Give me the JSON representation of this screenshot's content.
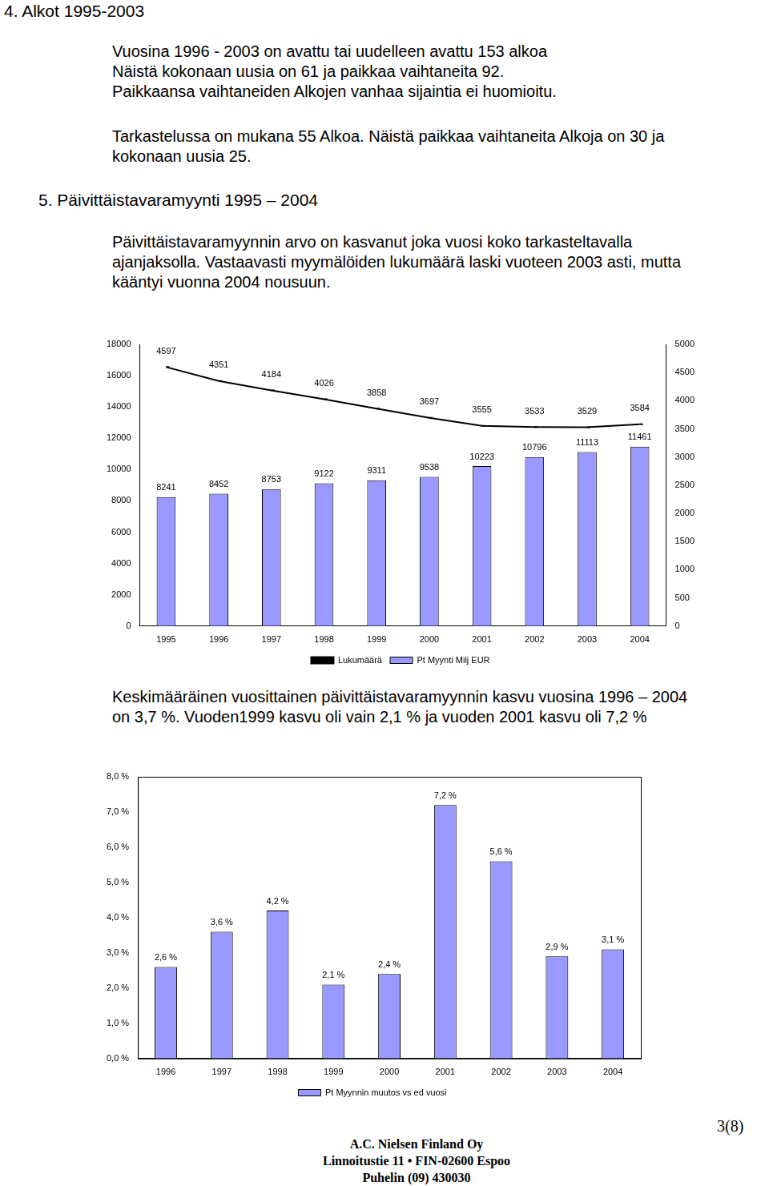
{
  "header": {
    "title": "4. Alkot 1995-2003"
  },
  "section4": {
    "paragraph1": [
      "Vuosina 1996 - 2003 on avattu tai uudelleen avattu 153 alkoa",
      "Näistä kokonaan uusia on 61 ja paikkaa vaihtaneita 92.",
      "Paikkaansa vaihtaneiden Alkojen vanhaa sijaintia ei huomioitu."
    ],
    "paragraph2": [
      "Tarkastelussa on mukana 55 Alkoa. Näistä paikkaa vaihtaneita Alkoja on 30 ja",
      "kokonaan uusia 25."
    ]
  },
  "section5": {
    "title": "5. Päivittäistavaramyynti 1995 – 2004",
    "paragraph1": [
      "Päivittäistavaramyynnin arvo on kasvanut joka vuosi koko tarkasteltavalla",
      "ajanjaksolla. Vastaavasti myymälöiden lukumäärä laski vuoteen 2003 asti, mutta",
      "kääntyi vuonna 2004 nousuun."
    ],
    "paragraph2": [
      "Keskimääräinen vuosittainen päivittäistavaramyynnin kasvu vuosina 1996 – 2004",
      "on 3,7 %. Vuoden1999 kasvu oli vain 2,1 % ja vuoden 2001 kasvu oli 7,2 %"
    ]
  },
  "chart_data": [
    {
      "type": "bar",
      "categories": [
        "1995",
        "1996",
        "1997",
        "1998",
        "1999",
        "2000",
        "2001",
        "2002",
        "2003",
        "2004"
      ],
      "series": [
        {
          "name": "Pt Myynti Milj EUR",
          "type": "bar",
          "color": "#9999ff",
          "values": [
            8241,
            8452,
            8753,
            9122,
            9311,
            9538,
            10223,
            10796,
            11113,
            11461
          ]
        },
        {
          "name": "Lukumäärä",
          "type": "line",
          "axis": "y2",
          "color": "#000000",
          "marker": "dash",
          "values": [
            4597,
            4351,
            4184,
            4026,
            3858,
            3697,
            3555,
            3533,
            3529,
            3584
          ]
        }
      ],
      "ylim": [
        0,
        18000
      ],
      "yticks": [
        0,
        2000,
        4000,
        6000,
        8000,
        10000,
        12000,
        14000,
        16000,
        18000
      ],
      "y2lim": [
        0,
        5000
      ],
      "y2ticks": [
        0,
        500,
        1000,
        1500,
        2000,
        2500,
        3000,
        3500,
        4000,
        4500,
        5000
      ],
      "grid": false,
      "legend": "bottom",
      "data_labels": true
    },
    {
      "type": "bar",
      "categories": [
        "1996",
        "1997",
        "1998",
        "1999",
        "2000",
        "2001",
        "2002",
        "2003",
        "2004"
      ],
      "series": [
        {
          "name": "Pt Myynnin muutos vs ed vuosi",
          "color": "#9999ff",
          "values": [
            2.6,
            3.6,
            4.2,
            2.1,
            2.4,
            7.2,
            5.6,
            2.9,
            3.1
          ],
          "value_labels": [
            "2,6 %",
            "3,6 %",
            "4,2 %",
            "2,1 %",
            "2,4 %",
            "7,2 %",
            "5,6 %",
            "2,9 %",
            "3,1 %"
          ]
        }
      ],
      "ylim": [
        0,
        8
      ],
      "yticks": [
        {
          "value": 0,
          "label": "0,0 %"
        },
        {
          "value": 1,
          "label": "1,0 %"
        },
        {
          "value": 2,
          "label": "2,0 %"
        },
        {
          "value": 3,
          "label": "3,0 %"
        },
        {
          "value": 4,
          "label": "4,0 %"
        },
        {
          "value": 5,
          "label": "5,0 %"
        },
        {
          "value": 6,
          "label": "6,0 %"
        },
        {
          "value": 7,
          "label": "7,0 %"
        },
        {
          "value": 8,
          "label": "8,0 %"
        }
      ],
      "grid": false,
      "legend": "bottom",
      "data_labels": true
    }
  ],
  "footer": {
    "lines": [
      "A.C. Nielsen Finland Oy",
      "Linnoitustie 11 • FIN-02600 Espoo",
      "Puhelin (09) 430030"
    ],
    "page": "3(8)"
  }
}
